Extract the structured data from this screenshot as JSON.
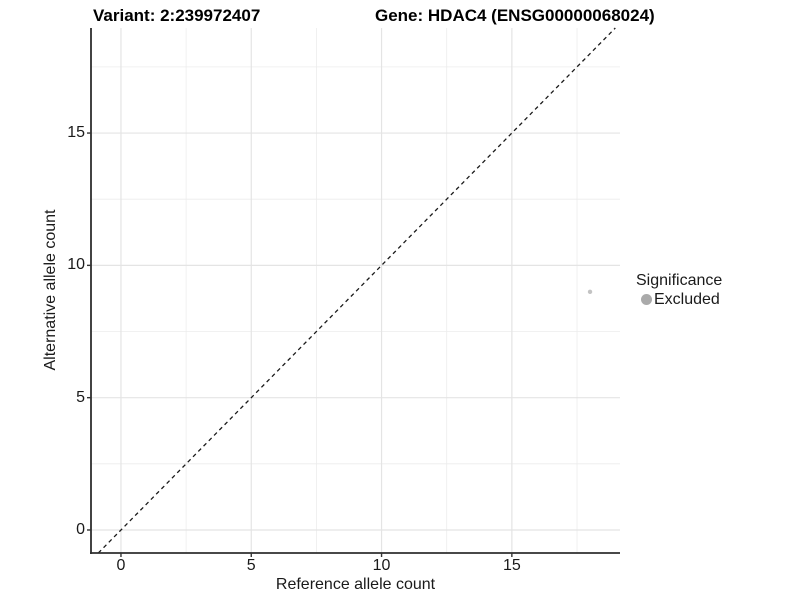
{
  "header": {
    "variant_title": "Variant: 2:239972407",
    "gene_title": "Gene: HDAC4 (ENSG00000068024)"
  },
  "chart_data": {
    "type": "scatter",
    "title_left": "Variant: 2:239972407",
    "title_right": "Gene: HDAC4 (ENSG00000068024)",
    "xlabel": "Reference allele count",
    "ylabel": "Alternative allele count",
    "xlim": [
      -1.15,
      19.15
    ],
    "ylim": [
      -0.87,
      18.97
    ],
    "x_major_ticks": [
      0,
      5,
      10,
      15
    ],
    "y_major_ticks": [
      0,
      5,
      10,
      15
    ],
    "x_tick_labels": [
      "0",
      "5",
      "10",
      "15"
    ],
    "y_tick_labels": [
      "0",
      "5",
      "10",
      "15"
    ],
    "x_minor_ticks": [
      2.5,
      7.5,
      12.5,
      17.5
    ],
    "y_minor_ticks": [
      2.5,
      7.5,
      12.5,
      17.5
    ],
    "grid": "major and minor, light gray, white panel background",
    "reference_line": {
      "kind": "identity y=x",
      "style": "dashed",
      "color": "#1a1a1a"
    },
    "points": [
      {
        "x": 18,
        "y": 9,
        "significance": "Excluded"
      }
    ],
    "legend": {
      "position": "right",
      "title": "Significance",
      "items": [
        {
          "label": "Excluded",
          "color": "#aaaaaa"
        }
      ]
    },
    "colors": {
      "point": "#c3c3c3",
      "legend_key": "#aaaaaa",
      "grid_major": "#e4e4e4",
      "grid_minor": "#ececec",
      "axis_line": "#2e2e2e",
      "tick_mark": "#333333",
      "dashed_line": "#1a1a1a"
    }
  }
}
